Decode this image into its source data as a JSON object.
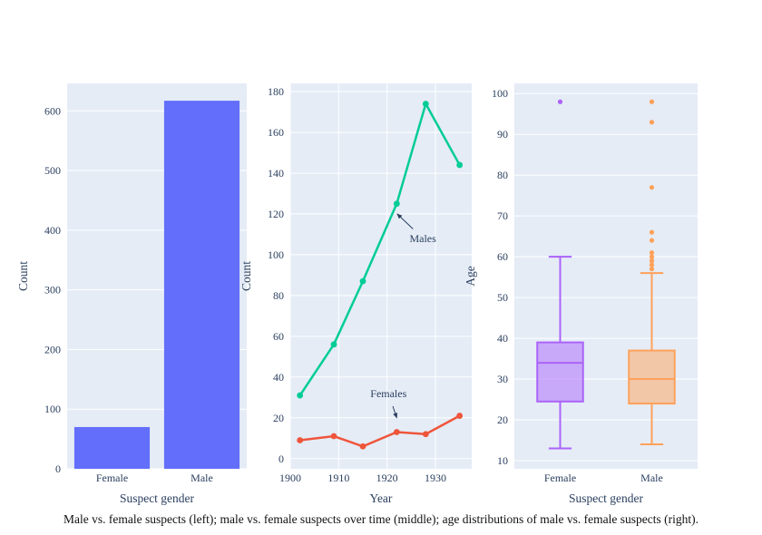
{
  "figure": {
    "caption": "Male vs. female suspects (left); male vs. female suspects over time (middle); age distributions of male vs. female suspects (right).",
    "colors": {
      "plot_bg": "#E5ECF6",
      "grid": "#FFFFFF",
      "text": "#2a3f5f",
      "bar": "#636EFA",
      "males_line": "#00CC96",
      "females_line": "#EF553B",
      "female_box": "#AB63FA",
      "male_box": "#FFA15A"
    }
  },
  "chart_data": [
    {
      "type": "bar",
      "title": "",
      "xlabel": "Suspect gender",
      "ylabel": "Count",
      "categories": [
        "Female",
        "Male"
      ],
      "values": [
        70,
        617
      ],
      "ylim": [
        0,
        646
      ],
      "yticks": [
        0,
        100,
        200,
        300,
        400,
        500,
        600
      ],
      "color": "#636EFA",
      "grid": true,
      "legend": false
    },
    {
      "type": "line",
      "title": "",
      "xlabel": "Year",
      "ylabel": "Count",
      "x": [
        1902,
        1909,
        1915,
        1922,
        1928,
        1935
      ],
      "series": [
        {
          "name": "Males",
          "color": "#00CC96",
          "values": [
            31,
            56,
            87,
            125,
            174,
            144
          ]
        },
        {
          "name": "Females",
          "color": "#EF553B",
          "values": [
            9,
            11,
            6,
            13,
            12,
            21
          ]
        }
      ],
      "xlim": [
        1900,
        1937.5
      ],
      "ylim": [
        -5,
        184
      ],
      "xticks": [
        1900,
        1910,
        1920,
        1930
      ],
      "yticks": [
        0,
        20,
        40,
        60,
        80,
        100,
        120,
        140,
        160,
        180
      ],
      "grid": true,
      "legend": false,
      "annotations": [
        {
          "text": "Males",
          "arrow_x": 1922.1,
          "arrow_y": 120,
          "text_x": 1927.4,
          "text_y": 108
        },
        {
          "text": "Females",
          "arrow_x": 1922.0,
          "arrow_y": 20,
          "text_x": 1920.3,
          "text_y": 32
        }
      ]
    },
    {
      "type": "box",
      "title": "",
      "xlabel": "Suspect gender",
      "ylabel": "Age",
      "categories": [
        "Female",
        "Male"
      ],
      "boxes": [
        {
          "label": "Female",
          "color": "#AB63FA",
          "whisker_low": 13,
          "q1": 24.5,
          "median": 34,
          "q3": 39,
          "whisker_high": 60,
          "outliers": [
            98
          ]
        },
        {
          "label": "Male",
          "color": "#FFA15A",
          "whisker_low": 14,
          "q1": 24,
          "median": 30,
          "q3": 37,
          "whisker_high": 56,
          "outliers": [
            57,
            58,
            59,
            59,
            60,
            61,
            64,
            66,
            77,
            93,
            98
          ]
        }
      ],
      "ylim": [
        8,
        102.5
      ],
      "yticks": [
        10,
        20,
        30,
        40,
        50,
        60,
        70,
        80,
        90,
        100
      ],
      "grid": true,
      "legend": false
    }
  ]
}
